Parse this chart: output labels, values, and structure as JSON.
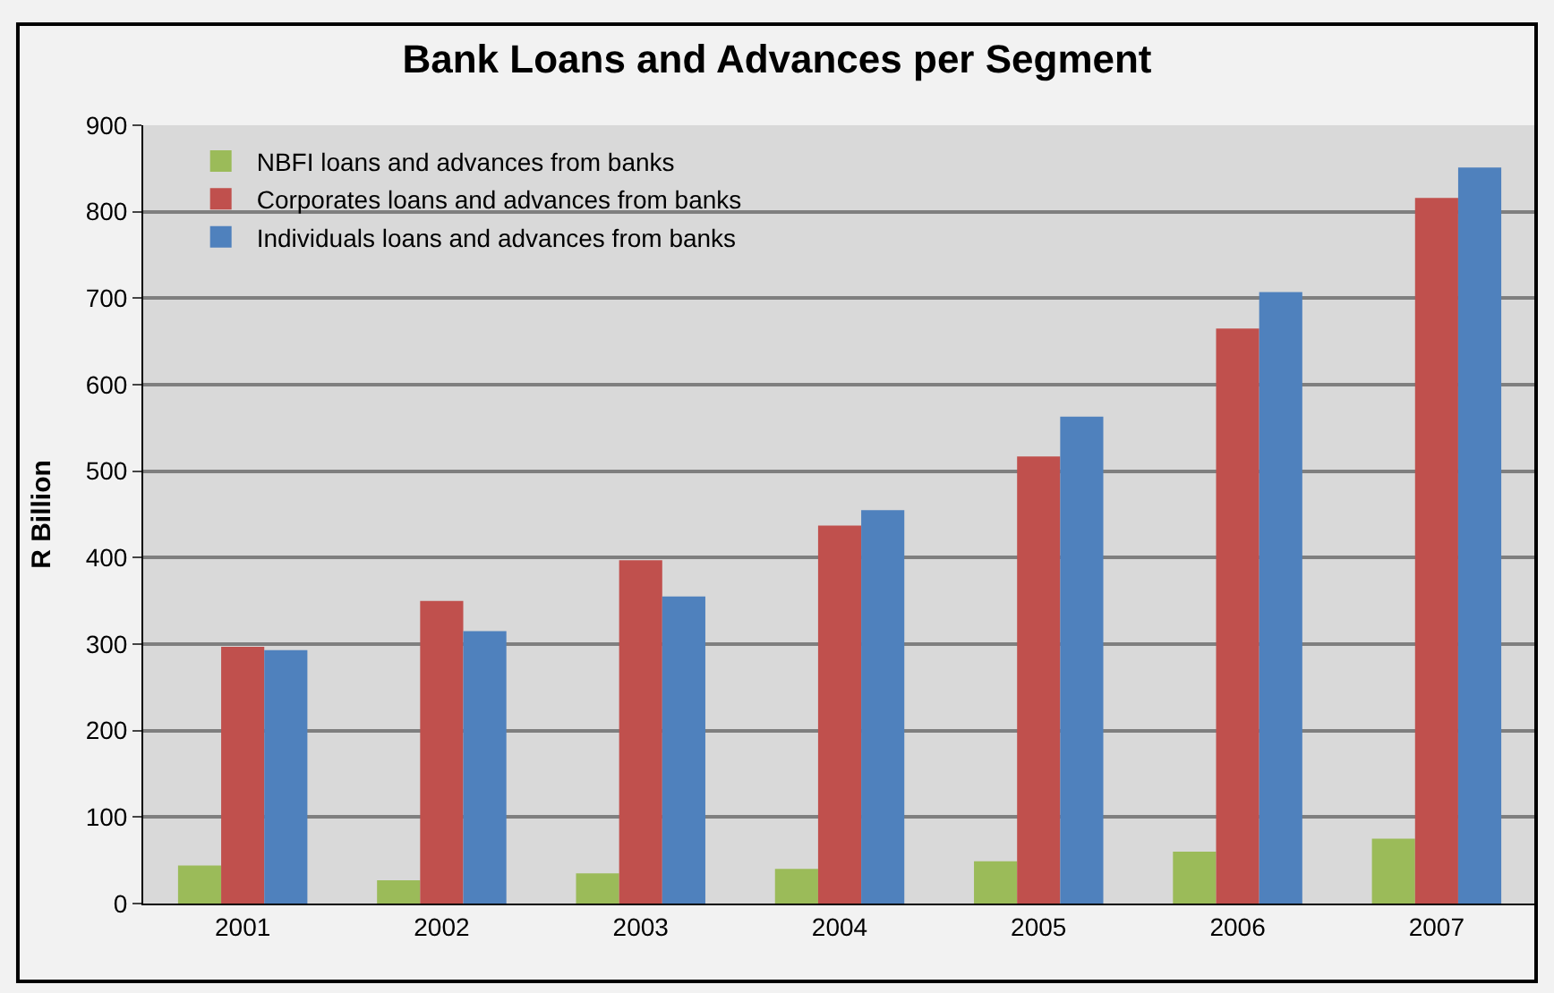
{
  "chart_data": {
    "type": "bar",
    "title": "Bank Loans and Advances per Segment",
    "ylabel": "R Billion",
    "categories": [
      "2001",
      "2002",
      "2003",
      "2004",
      "2005",
      "2006",
      "2007"
    ],
    "series": [
      {
        "name": "NBFI loans and advances from banks",
        "color": "#9bbb59",
        "values": [
          44,
          27,
          35,
          40,
          49,
          60,
          75
        ]
      },
      {
        "name": "Corporates loans and advances from banks",
        "color": "#c0504d",
        "values": [
          297,
          350,
          397,
          437,
          517,
          665,
          816
        ]
      },
      {
        "name": "Individuals loans and advances from banks",
        "color": "#4f81bd",
        "values": [
          293,
          315,
          355,
          455,
          563,
          707,
          851
        ]
      }
    ],
    "ylim": [
      0,
      900
    ],
    "yticks": [
      0,
      100,
      200,
      300,
      400,
      500,
      600,
      700,
      800,
      900
    ],
    "grid": "y",
    "legend": "top left"
  }
}
